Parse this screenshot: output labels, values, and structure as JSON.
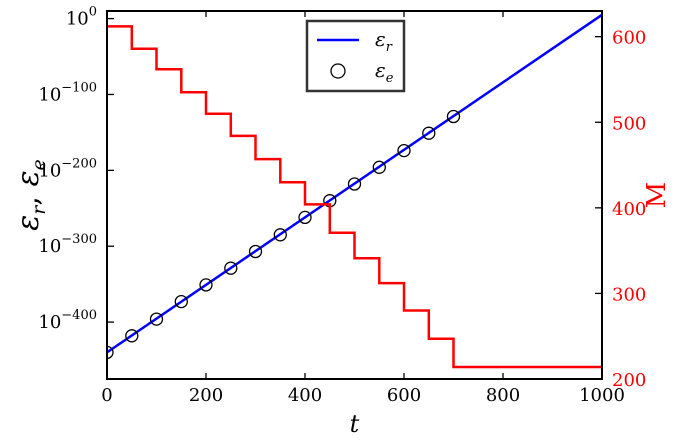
{
  "chart_data": {
    "type": "line",
    "left_axis": {
      "label_main": "ε",
      "label_sub1": "r",
      "label_sep": ", ",
      "label_sub2": "e",
      "scale": "log",
      "ylim_exponent": [
        -475,
        10
      ],
      "ticks_exponent": [
        0,
        -100,
        -200,
        -300,
        -400
      ],
      "tick_base": "10"
    },
    "right_axis": {
      "label": "M",
      "ylim": [
        200,
        630
      ],
      "ticks": [
        200,
        300,
        400,
        500,
        600
      ],
      "color": "#ff0000"
    },
    "x_axis": {
      "label": "t",
      "xlim": [
        0,
        1000
      ],
      "ticks": [
        0,
        200,
        400,
        600,
        800,
        1000
      ]
    },
    "series": [
      {
        "name_main": "ε",
        "name_sub": "r",
        "style": "line",
        "color": "#0000ff",
        "axis": "left",
        "x": [
          0,
          1000
        ],
        "log10_y": [
          -440,
          5
        ]
      },
      {
        "name_main": "ε",
        "name_sub": "e",
        "style": "markers",
        "marker": "open-circle",
        "color": "#000000",
        "axis": "left",
        "x": [
          0,
          50,
          100,
          150,
          200,
          250,
          300,
          350,
          400,
          450,
          500,
          550,
          600,
          650,
          700
        ],
        "log10_y": [
          -440,
          -418,
          -396,
          -373,
          -351,
          -329,
          -307,
          -285,
          -262,
          -240,
          -218,
          -196,
          -174,
          -151,
          -129
        ]
      },
      {
        "name": "M",
        "style": "step",
        "color": "#ff0000",
        "axis": "right",
        "x": [
          0,
          50,
          100,
          150,
          200,
          250,
          300,
          350,
          400,
          450,
          500,
          550,
          600,
          650,
          700,
          1000
        ],
        "y": [
          612,
          586,
          562,
          535,
          510,
          484,
          457,
          430,
          404,
          371,
          341,
          312,
          280,
          247,
          214,
          214
        ]
      }
    ],
    "legend": {
      "position": "top-center"
    }
  }
}
